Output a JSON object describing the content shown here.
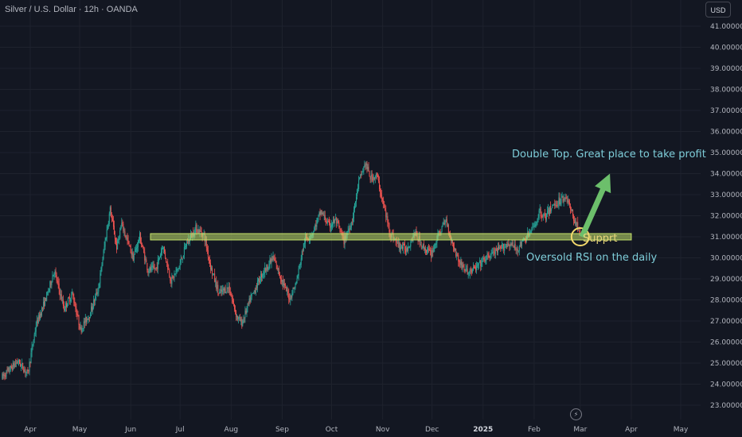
{
  "header": {
    "symbol_title": "Silver / U.S. Dollar · 12h · OANDA",
    "currency": "USD"
  },
  "icons": {
    "timezone": "lightning-bolt-icon"
  },
  "colors": {
    "background": "#131722",
    "up": "#26a69a",
    "down": "#ef5350",
    "support_zone": "#c5e36b",
    "annotation_text": "#7ecdd9",
    "arrow": "#6cbf6b",
    "circle": "#f2d86b"
  },
  "chart_data": {
    "type": "candlestick",
    "title": "Silver / U.S. Dollar · 12h · OANDA",
    "xlabel": "",
    "ylabel": "",
    "ylim": [
      22.6,
      41.3
    ],
    "grid": true,
    "legend": "none",
    "y_ticks": [
      "41.00000",
      "40.00000",
      "39.00000",
      "38.00000",
      "37.00000",
      "36.00000",
      "35.00000",
      "34.00000",
      "33.00000",
      "32.00000",
      "31.00000",
      "30.00000",
      "29.00000",
      "28.00000",
      "27.00000",
      "26.00000",
      "25.00000",
      "24.00000",
      "23.00000"
    ],
    "x_ticks": [
      {
        "label": "Apr",
        "date": "2024-04-01"
      },
      {
        "label": "May",
        "date": "2024-05-01"
      },
      {
        "label": "Jun",
        "date": "2024-06-01"
      },
      {
        "label": "Jul",
        "date": "2024-07-01"
      },
      {
        "label": "Aug",
        "date": "2024-08-01"
      },
      {
        "label": "Sep",
        "date": "2024-09-01"
      },
      {
        "label": "Oct",
        "date": "2024-10-01"
      },
      {
        "label": "Nov",
        "date": "2024-11-01"
      },
      {
        "label": "Dec",
        "date": "2024-12-01"
      },
      {
        "label": "2025",
        "date": "2025-01-01",
        "bold": true
      },
      {
        "label": "Feb",
        "date": "2025-02-01"
      },
      {
        "label": "Mar",
        "date": "2025-03-01"
      },
      {
        "label": "Apr",
        "date": "2025-04-01"
      },
      {
        "label": "May",
        "date": "2025-05-01"
      }
    ],
    "price_path": [
      [
        "2024-03-15",
        24.3
      ],
      [
        "2024-03-25",
        25.1
      ],
      [
        "2024-03-31",
        24.5
      ],
      [
        "2024-04-05",
        26.8
      ],
      [
        "2024-04-12",
        28.3
      ],
      [
        "2024-04-16",
        29.4
      ],
      [
        "2024-04-22",
        27.6
      ],
      [
        "2024-04-27",
        28.3
      ],
      [
        "2024-05-02",
        26.6
      ],
      [
        "2024-05-08",
        27.4
      ],
      [
        "2024-05-13",
        28.6
      ],
      [
        "2024-05-17",
        30.8
      ],
      [
        "2024-05-20",
        32.3
      ],
      [
        "2024-05-24",
        30.5
      ],
      [
        "2024-05-27",
        31.6
      ],
      [
        "2024-06-03",
        30.0
      ],
      [
        "2024-06-07",
        31.0
      ],
      [
        "2024-06-12",
        29.4
      ],
      [
        "2024-06-17",
        29.5
      ],
      [
        "2024-06-21",
        30.6
      ],
      [
        "2024-06-26",
        28.9
      ],
      [
        "2024-07-01",
        29.6
      ],
      [
        "2024-07-05",
        30.6
      ],
      [
        "2024-07-11",
        31.4
      ],
      [
        "2024-07-16",
        31.1
      ],
      [
        "2024-07-20",
        29.6
      ],
      [
        "2024-07-25",
        28.3
      ],
      [
        "2024-07-31",
        28.6
      ],
      [
        "2024-08-05",
        27.2
      ],
      [
        "2024-08-08",
        26.9
      ],
      [
        "2024-08-13",
        28.0
      ],
      [
        "2024-08-20",
        29.2
      ],
      [
        "2024-08-27",
        30.0
      ],
      [
        "2024-09-03",
        28.6
      ],
      [
        "2024-09-06",
        28.1
      ],
      [
        "2024-09-10",
        28.8
      ],
      [
        "2024-09-15",
        30.8
      ],
      [
        "2024-09-20",
        31.2
      ],
      [
        "2024-09-25",
        32.2
      ],
      [
        "2024-09-30",
        31.5
      ],
      [
        "2024-10-04",
        31.8
      ],
      [
        "2024-10-09",
        30.8
      ],
      [
        "2024-10-14",
        31.8
      ],
      [
        "2024-10-18",
        33.6
      ],
      [
        "2024-10-22",
        34.5
      ],
      [
        "2024-10-25",
        33.8
      ],
      [
        "2024-10-29",
        33.9
      ],
      [
        "2024-11-02",
        32.5
      ],
      [
        "2024-11-06",
        31.2
      ],
      [
        "2024-11-11",
        30.6
      ],
      [
        "2024-11-16",
        30.4
      ],
      [
        "2024-11-21",
        31.2
      ],
      [
        "2024-11-26",
        30.5
      ],
      [
        "2024-12-01",
        30.2
      ],
      [
        "2024-12-06",
        31.2
      ],
      [
        "2024-12-10",
        31.8
      ],
      [
        "2024-12-13",
        30.9
      ],
      [
        "2024-12-18",
        29.8
      ],
      [
        "2024-12-23",
        29.3
      ],
      [
        "2024-12-28",
        29.5
      ],
      [
        "2025-01-02",
        29.9
      ],
      [
        "2025-01-07",
        30.2
      ],
      [
        "2025-01-12",
        30.4
      ],
      [
        "2025-01-17",
        30.7
      ],
      [
        "2025-01-22",
        30.4
      ],
      [
        "2025-01-27",
        30.9
      ],
      [
        "2025-02-01",
        31.4
      ],
      [
        "2025-02-05",
        32.2
      ],
      [
        "2025-02-08",
        31.9
      ],
      [
        "2025-02-12",
        32.4
      ],
      [
        "2025-02-15",
        32.6
      ],
      [
        "2025-02-18",
        32.8
      ],
      [
        "2025-02-21",
        32.9
      ],
      [
        "2025-02-24",
        32.2
      ],
      [
        "2025-02-27",
        31.6
      ],
      [
        "2025-03-01",
        31.3
      ]
    ],
    "annotations": {
      "support_zone": {
        "y_low": 30.85,
        "y_high": 31.15,
        "x_start": "2024-06-13",
        "x_end": "2025-04-01"
      },
      "circle": {
        "date": "2025-03-01",
        "price": 31.0
      },
      "arrow": {
        "from": {
          "date": "2025-03-02",
          "price": 31.0
        },
        "to": {
          "date": "2025-03-19",
          "price": 34.0
        }
      },
      "labels": [
        {
          "text": "Double Top.  Great place to take profit",
          "color": "#7ecdd9"
        },
        {
          "text": "Supprt",
          "color": "#e8d679"
        },
        {
          "text": "Oversold RSI on the daily",
          "color": "#7ecdd9"
        }
      ]
    }
  }
}
